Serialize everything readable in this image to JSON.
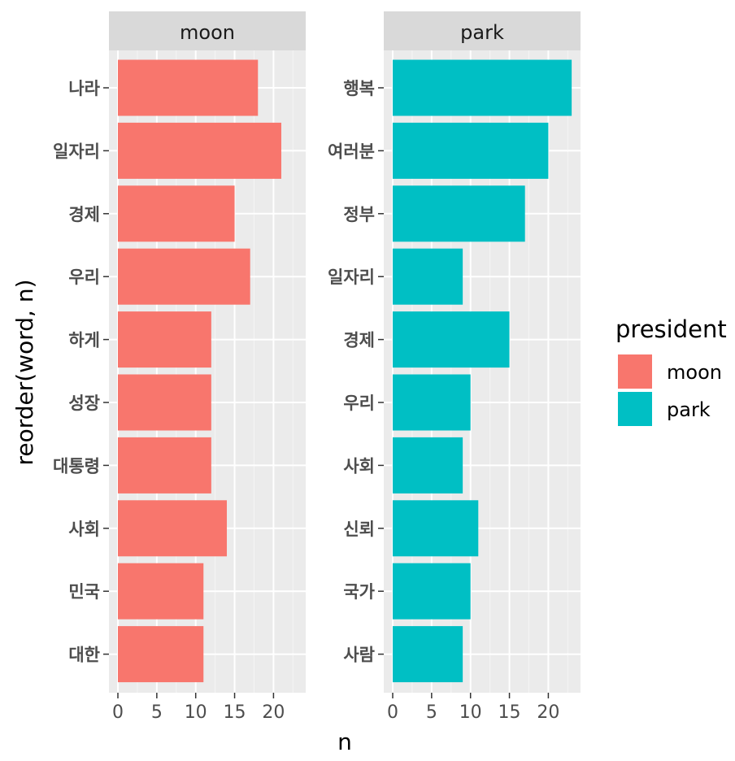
{
  "chart_data": {
    "type": "bar",
    "orientation": "horizontal",
    "xlabel": "n",
    "ylabel": "reorder(word, n)",
    "xlim": [
      0,
      24
    ],
    "xticks": [
      "0",
      "5",
      "10",
      "15",
      "20"
    ],
    "grid": true,
    "legend": {
      "title": "president",
      "placement": "right",
      "entries": [
        {
          "label": "moon",
          "color": "#F8766D"
        },
        {
          "label": "park",
          "color": "#00BFC4"
        }
      ]
    },
    "panels": [
      {
        "name": "moon",
        "color": "#F8766D",
        "categories": [
          "나라",
          "일자리",
          "경제",
          "우리",
          "하게",
          "성장",
          "대통령",
          "사회",
          "민국",
          "대한"
        ],
        "values": [
          18,
          21,
          15,
          17,
          12,
          12,
          12,
          14,
          11,
          11
        ]
      },
      {
        "name": "park",
        "color": "#00BFC4",
        "categories": [
          "행복",
          "여러분",
          "정부",
          "일자리",
          "경제",
          "우리",
          "사회",
          "신뢰",
          "국가",
          "사람"
        ],
        "values": [
          23,
          20,
          17,
          9,
          15,
          10,
          9,
          11,
          10,
          9
        ]
      }
    ]
  }
}
